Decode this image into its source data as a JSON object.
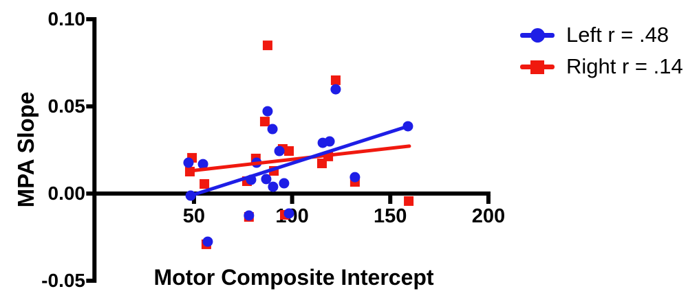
{
  "figure": {
    "background": "#ffffff",
    "axis_color": "#000000"
  },
  "legend": {
    "left_label": "Left r = .48",
    "right_label": "Right r = .14"
  },
  "chart_data": {
    "type": "scatter",
    "title": "",
    "xlabel": "Motor Composite Intercept",
    "ylabel": "MPA Slope",
    "xlim": [
      0,
      200
    ],
    "ylim": [
      -0.05,
      0.1
    ],
    "x_ticks": [
      50,
      100,
      150,
      200
    ],
    "x_tick_labels": [
      "50",
      "100",
      "150",
      "200"
    ],
    "y_ticks": [
      0.1,
      0.05,
      0.0,
      -0.05
    ],
    "y_tick_labels": [
      "0.10",
      "0.05",
      "0.00",
      "-0.05"
    ],
    "grid": false,
    "legend_position": "top-right",
    "series": [
      {
        "name": "Left",
        "legend_label": "Left r = .48",
        "marker": "circle",
        "color": "#1e1ee6",
        "points": [
          [
            47.2,
            0.0177
          ],
          [
            54.6,
            0.0169
          ],
          [
            48.3,
            -0.0012
          ],
          [
            57.0,
            -0.0276
          ],
          [
            78.0,
            -0.0126
          ],
          [
            98.4,
            -0.0114
          ],
          [
            79.1,
            0.0079
          ],
          [
            86.8,
            0.0083
          ],
          [
            90.3,
            0.0039
          ],
          [
            95.9,
            0.0059
          ],
          [
            81.9,
            0.0177
          ],
          [
            93.5,
            0.0244
          ],
          [
            87.5,
            0.0472
          ],
          [
            90.0,
            0.037
          ],
          [
            115.6,
            0.0291
          ],
          [
            119.1,
            0.0299
          ],
          [
            132.0,
            0.0094
          ],
          [
            122.2,
            0.0598
          ],
          [
            159.0,
            0.0386
          ]
        ],
        "trend_line": {
          "x1": 48.3,
          "y1": -0.0012,
          "x2": 159.0,
          "y2": 0.0386
        }
      },
      {
        "name": "Right",
        "legend_label": "Right r = .14",
        "marker": "square",
        "color": "#f0190f",
        "points": [
          [
            49.0,
            0.0205
          ],
          [
            47.9,
            0.0126
          ],
          [
            55.3,
            0.0055
          ],
          [
            56.3,
            -0.0291
          ],
          [
            78.0,
            -0.0134
          ],
          [
            96.3,
            -0.0122
          ],
          [
            77.0,
            0.0071
          ],
          [
            81.5,
            0.0201
          ],
          [
            90.7,
            0.013
          ],
          [
            95.2,
            0.0256
          ],
          [
            98.4,
            0.0244
          ],
          [
            86.1,
            0.0413
          ],
          [
            87.5,
            0.085
          ],
          [
            115.2,
            0.0173
          ],
          [
            118.4,
            0.0213
          ],
          [
            132.0,
            0.0067
          ],
          [
            122.2,
            0.065
          ],
          [
            159.4,
            -0.0043
          ]
        ],
        "trend_line": {
          "x1": 48.0,
          "y1": 0.013,
          "x2": 159.7,
          "y2": 0.0272
        }
      }
    ]
  }
}
